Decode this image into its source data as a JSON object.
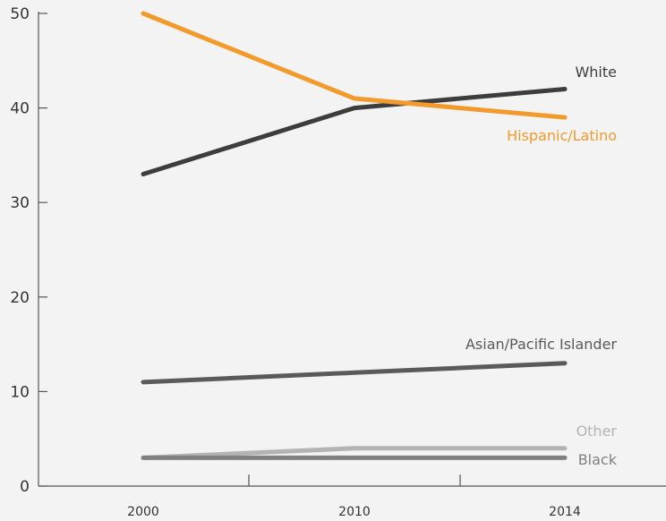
{
  "chart_data": {
    "type": "line",
    "title": "",
    "xlabel": "",
    "ylabel": "",
    "x": [
      2000,
      2010,
      2014
    ],
    "x_tick_labels": [
      "2000",
      "2010",
      "2014"
    ],
    "y_ticks": [
      0,
      10,
      20,
      30,
      40,
      50
    ],
    "y_tick_labels": [
      "0",
      "10",
      "20",
      "30",
      "40",
      "50"
    ],
    "ylim": [
      0,
      50
    ],
    "grid": false,
    "legend": "inline labels at line ends",
    "series": [
      {
        "name": "Hispanic/Latino",
        "values": [
          50,
          41,
          39
        ],
        "color": "#f39a2c"
      },
      {
        "name": "White",
        "values": [
          33,
          40,
          42
        ],
        "color": "#3d3d3d"
      },
      {
        "name": "Asian/Pacific Islander",
        "values": [
          11,
          12,
          13
        ],
        "color": "#5a5a5a"
      },
      {
        "name": "Other",
        "values": [
          3,
          4,
          4
        ],
        "color": "#b3b3b3"
      },
      {
        "name": "Black",
        "values": [
          3,
          3,
          3
        ],
        "color": "#808080"
      }
    ]
  }
}
